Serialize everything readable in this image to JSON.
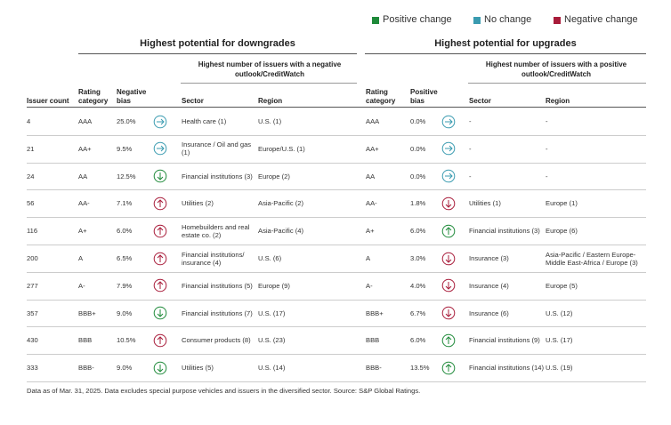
{
  "legend": [
    "Positive change",
    "No change",
    "Negative change"
  ],
  "header": {
    "downgrades": {
      "title": "Highest potential for downgrades",
      "subtitle": "Highest number of issuers with a negative outlook/CreditWatch"
    },
    "upgrades": {
      "title": "Highest potential for upgrades",
      "subtitle": "Highest number of issuers with a positive outlook/CreditWatch"
    }
  },
  "table": {
    "columns": [
      "Issuer count",
      "Rating category",
      "Negative bias",
      "Sector",
      "Region",
      "Rating category",
      "Positive bias",
      "Sector",
      "Region"
    ],
    "rows": [
      [
        "4",
        "AAA",
        "25.0%",
        "Health care (1)",
        "U.S. (1)",
        "AAA",
        "0.0%",
        "-",
        "-"
      ],
      [
        "21",
        "AA+",
        "9.5%",
        "Insurance / Oil and gas (1)",
        "Europe/U.S. (1)",
        "AA+",
        "0.0%",
        "-",
        "-"
      ],
      [
        "24",
        "AA",
        "12.5%",
        "Financial institutions (3)",
        "Europe (2)",
        "AA",
        "0.0%",
        "-",
        "-"
      ],
      [
        "56",
        "AA-",
        "7.1%",
        "Utilities (2)",
        "Asia-Pacific (2)",
        "AA-",
        "1.8%",
        "Utilities (1)",
        "Europe (1)"
      ],
      [
        "116",
        "A+",
        "6.0%",
        "Homebuilders and real estate co. (2)",
        "Asia-Pacific (4)",
        "A+",
        "6.0%",
        "Financial institutions (3)",
        "Europe (6)"
      ],
      [
        "200",
        "A",
        "6.5%",
        "Financial institutions/ insurance (4)",
        "U.S. (6)",
        "A",
        "3.0%",
        "Insurance (3)",
        "Asia-Pacific / Eastern Europe-Middle East-Africa / Europe (3)"
      ],
      [
        "277",
        "A-",
        "7.9%",
        "Financial institutions (5)",
        "Europe (9)",
        "A-",
        "4.0%",
        "Insurance (4)",
        "Europe (5)"
      ],
      [
        "357",
        "BBB+",
        "9.0%",
        "Financial institutions (7)",
        "U.S. (17)",
        "BBB+",
        "6.7%",
        "Insurance (6)",
        "U.S. (12)"
      ],
      [
        "430",
        "BBB",
        "10.5%",
        "Consumer products (8)",
        "U.S. (23)",
        "BBB",
        "6.0%",
        "Financial institutions (9)",
        "U.S. (17)"
      ],
      [
        "333",
        "BBB-",
        "9.0%",
        "Utilities (5)",
        "U.S. (14)",
        "BBB-",
        "13.5%",
        "Financial institutions (14)",
        "U.S. (19)"
      ]
    ]
  },
  "footnote": "Data as of Mar. 31, 2025. Data excludes special purpose vehicles and issuers in the diversified sector. Source: S&P Global Ratings."
}
